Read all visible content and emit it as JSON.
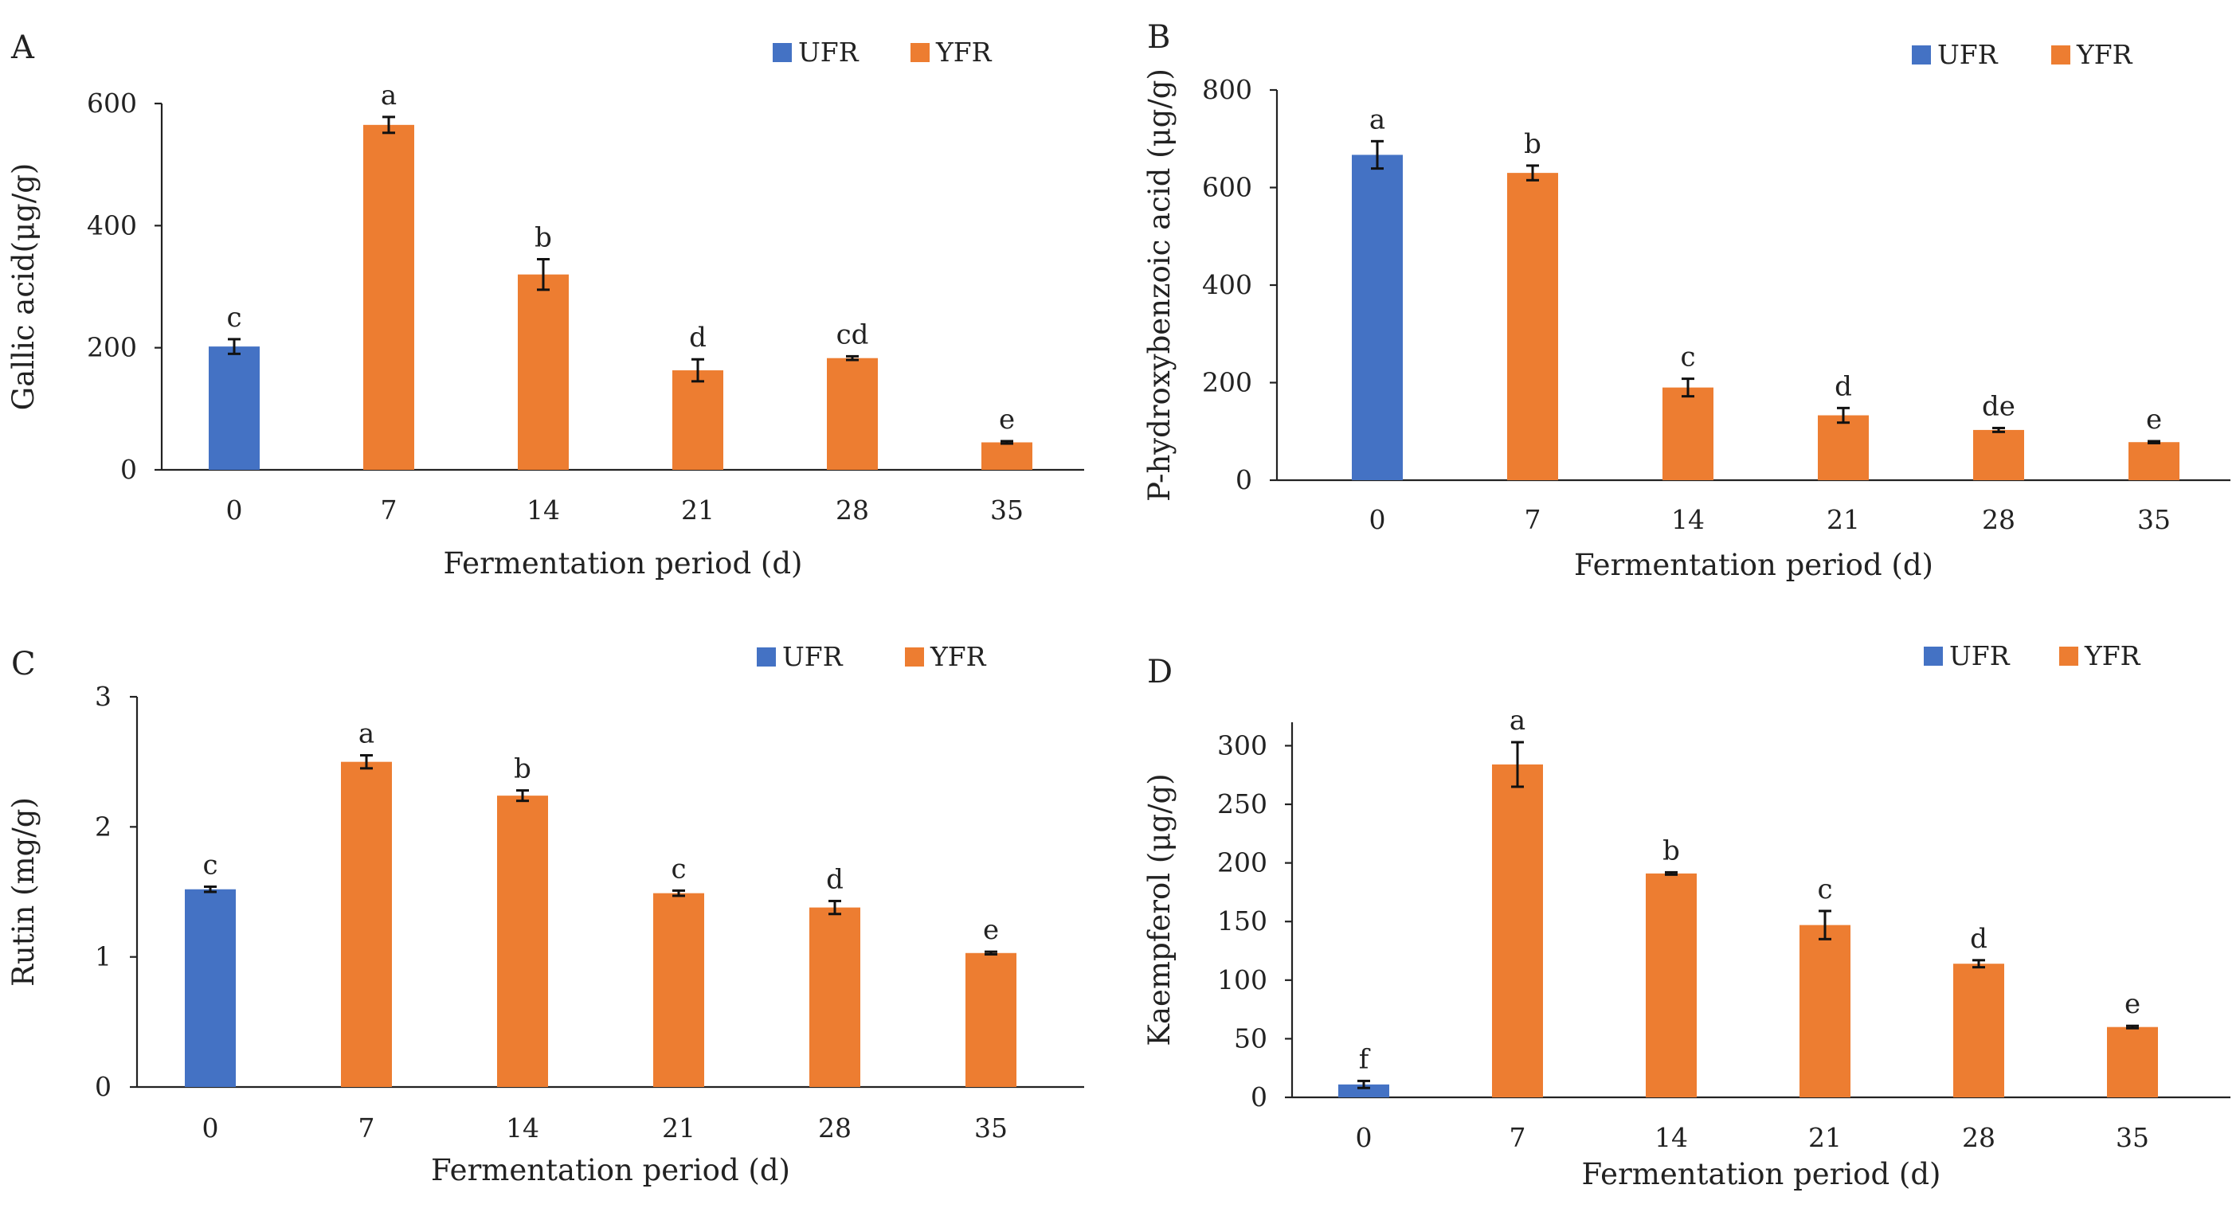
{
  "legend": {
    "ufr_label": "UFR",
    "yfr_label": "YFR"
  },
  "colors": {
    "ufr": "#4472C4",
    "yfr": "#ED7D31"
  },
  "chart_data": [
    {
      "type": "bar",
      "panel": "A",
      "title": "",
      "xlabel": "Fermentation period (d)",
      "ylabel": "Gallic acid(μg/g)",
      "categories": [
        "0",
        "7",
        "14",
        "21",
        "28",
        "35"
      ],
      "groups": [
        "UFR",
        "YFR",
        "YFR",
        "YFR",
        "YFR",
        "YFR"
      ],
      "values": [
        202,
        565,
        320,
        163,
        183,
        45
      ],
      "errors": [
        12,
        13,
        25,
        18,
        3,
        2
      ],
      "significance": [
        "c",
        "a",
        "b",
        "d",
        "cd",
        "e"
      ],
      "ylim": [
        0,
        600
      ],
      "yticks": [
        0,
        200,
        400,
        600
      ],
      "ytick_labels": [
        "0",
        "200",
        "400",
        "600"
      ],
      "legend_position": "top-right"
    },
    {
      "type": "bar",
      "panel": "B",
      "title": "",
      "xlabel": "Fermentation period (d)",
      "ylabel": "P-hydroxybenzoic acid (μg/g)",
      "categories": [
        "0",
        "7",
        "14",
        "21",
        "28",
        "35"
      ],
      "groups": [
        "UFR",
        "YFR",
        "YFR",
        "YFR",
        "YFR",
        "YFR"
      ],
      "values": [
        667,
        630,
        190,
        133,
        103,
        78
      ],
      "errors": [
        28,
        15,
        18,
        15,
        4,
        2
      ],
      "significance": [
        "a",
        "b",
        "c",
        "d",
        "de",
        "e"
      ],
      "ylim": [
        0,
        800
      ],
      "yticks": [
        0,
        200,
        400,
        600,
        800
      ],
      "ytick_labels": [
        "0",
        "200",
        "400",
        "600",
        "800"
      ],
      "legend_position": "top-right"
    },
    {
      "type": "bar",
      "panel": "C",
      "title": "",
      "xlabel": "Fermentation period (d)",
      "ylabel": "Rutin (mg/g)",
      "categories": [
        "0",
        "7",
        "14",
        "21",
        "28",
        "35"
      ],
      "groups": [
        "UFR",
        "YFR",
        "YFR",
        "YFR",
        "YFR",
        "YFR"
      ],
      "values": [
        1.52,
        2.5,
        2.24,
        1.49,
        1.38,
        1.03
      ],
      "errors": [
        0.02,
        0.05,
        0.04,
        0.02,
        0.05,
        0.01
      ],
      "significance": [
        "c",
        "a",
        "b",
        "c",
        "d",
        "e"
      ],
      "ylim": [
        0,
        3
      ],
      "yticks": [
        0,
        1,
        2,
        3
      ],
      "ytick_labels": [
        "0",
        "1",
        "2",
        "3"
      ],
      "legend_position": "top-right"
    },
    {
      "type": "bar",
      "panel": "D",
      "title": "",
      "xlabel": "Fermentation period (d)",
      "ylabel": "Kaempferol (μg/g)",
      "categories": [
        "0",
        "7",
        "14",
        "21",
        "28",
        "35"
      ],
      "groups": [
        "UFR",
        "YFR",
        "YFR",
        "YFR",
        "YFR",
        "YFR"
      ],
      "values": [
        11,
        284,
        191,
        147,
        114,
        60
      ],
      "errors": [
        3,
        19,
        1,
        12,
        3,
        1
      ],
      "significance": [
        "f",
        "a",
        "b",
        "c",
        "d",
        "e"
      ],
      "ylim": [
        0,
        320
      ],
      "yticks": [
        0,
        50,
        100,
        150,
        200,
        250,
        300
      ],
      "ytick_labels": [
        "0",
        "50",
        "100",
        "150",
        "200",
        "250",
        "300"
      ],
      "legend_position": "top-right"
    }
  ]
}
